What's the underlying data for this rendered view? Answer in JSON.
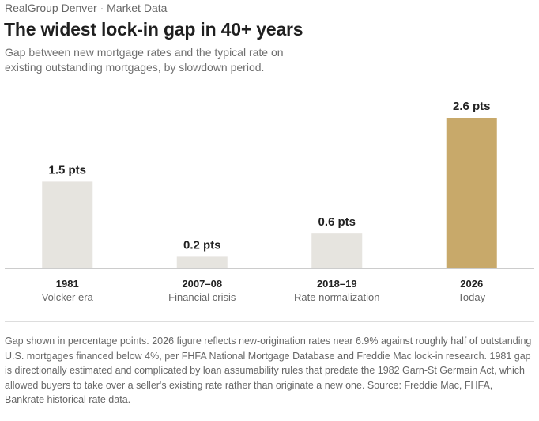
{
  "header": {
    "source_line": "RealGroup Denver · Market Data",
    "headline": "The widest lock-in gap in 40+ years",
    "subtitle": "Gap between new mortgage rates and the typical rate on existing outstanding mortgages, by slowdown period."
  },
  "chart_data": {
    "type": "bar",
    "categories": [
      "1981",
      "2007–08",
      "2018–19",
      "2026"
    ],
    "category_sublabels": [
      "Volcker era",
      "Financial crisis",
      "Rate normalization",
      "Today"
    ],
    "values": [
      1.5,
      0.2,
      0.6,
      2.6
    ],
    "value_labels": [
      "1.5 pts",
      "0.2 pts",
      "0.6 pts",
      "2.6 pts"
    ],
    "highlight_index": 3,
    "ylim": [
      0,
      2.6
    ],
    "grid": false,
    "colors": {
      "bar": "#e6e4df",
      "highlight": "#c8a96a",
      "baseline": "#cccccc"
    }
  },
  "footnote": "Gap shown in percentage points. 2026 figure reflects new-origination rates near 6.9% against roughly half of outstanding U.S. mortgages financed below 4%, per FHFA National Mortgage Database and Freddie Mac lock-in research. 1981 gap is directionally estimated and complicated by loan assumability rules that predate the 1982 Garn-St Germain Act, which allowed buyers to take over a seller's existing rate rather than originate a new one. Source: Freddie Mac, FHFA, Bankrate historical rate data."
}
